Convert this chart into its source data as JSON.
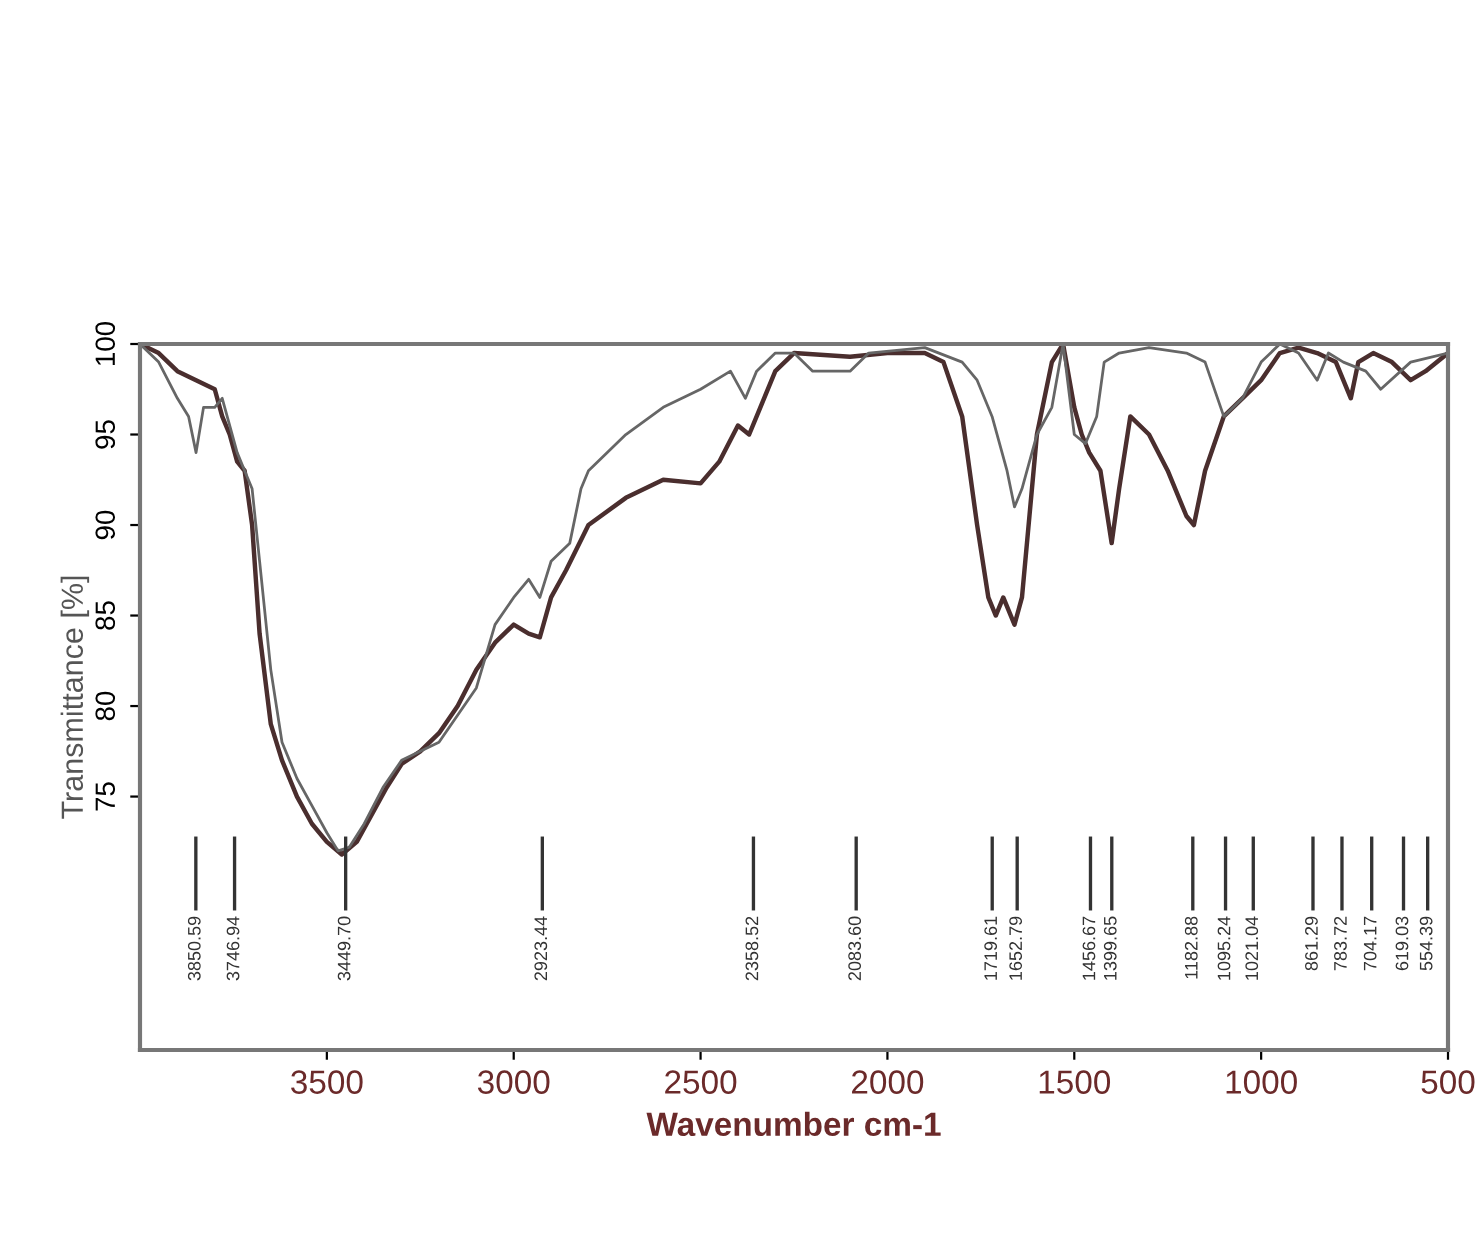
{
  "chart_data": {
    "type": "line",
    "xlabel": "Wavenumber cm-1",
    "ylabel": "Transmittance [%]",
    "xlim": [
      4000,
      500
    ],
    "xticks": [
      3500,
      3000,
      2500,
      2000,
      1500,
      1000,
      500
    ],
    "ylim": [
      61,
      100
    ],
    "yticks": [
      75,
      80,
      85,
      90,
      95,
      100
    ],
    "grid": false,
    "series": [
      {
        "color": "#4a2e2e",
        "x": [
          4000,
          3950,
          3900,
          3850,
          3800,
          3780,
          3760,
          3740,
          3720,
          3700,
          3680,
          3650,
          3620,
          3580,
          3540,
          3500,
          3460,
          3420,
          3380,
          3340,
          3300,
          3250,
          3200,
          3150,
          3100,
          3050,
          3000,
          2960,
          2930,
          2900,
          2860,
          2800,
          2700,
          2600,
          2500,
          2450,
          2400,
          2370,
          2340,
          2300,
          2250,
          2100,
          2000,
          1900,
          1850,
          1800,
          1760,
          1730,
          1710,
          1690,
          1660,
          1640,
          1600,
          1560,
          1530,
          1500,
          1480,
          1460,
          1430,
          1400,
          1380,
          1350,
          1300,
          1250,
          1200,
          1180,
          1150,
          1100,
          1050,
          1000,
          950,
          900,
          850,
          800,
          760,
          740,
          700,
          650,
          600,
          560,
          500
        ],
        "values": [
          100,
          99.5,
          98.5,
          98,
          97.5,
          96,
          95,
          93.5,
          93,
          90,
          84,
          79,
          77,
          75,
          73.5,
          72.5,
          71.8,
          72.5,
          74,
          75.5,
          76.8,
          77.5,
          78.5,
          80,
          82,
          83.5,
          84.5,
          84,
          83.8,
          86,
          87.5,
          90,
          91.5,
          92.5,
          92.3,
          93.5,
          95.5,
          95,
          96.5,
          98.5,
          99.5,
          99.3,
          99.5,
          99.5,
          99,
          96,
          90,
          86,
          85,
          86,
          84.5,
          86,
          95,
          99,
          100,
          96.5,
          95,
          94,
          93,
          89,
          92,
          96,
          95,
          93,
          90.5,
          90,
          93,
          96,
          97,
          98,
          99.5,
          99.8,
          99.5,
          99,
          97,
          99,
          99.5,
          99,
          98,
          98.5,
          99.5
        ]
      },
      {
        "color": "#666666",
        "x": [
          4000,
          3950,
          3900,
          3870,
          3850,
          3830,
          3800,
          3780,
          3740,
          3720,
          3700,
          3680,
          3650,
          3620,
          3580,
          3540,
          3500,
          3470,
          3440,
          3400,
          3350,
          3300,
          3200,
          3100,
          3050,
          3000,
          2960,
          2930,
          2900,
          2850,
          2820,
          2800,
          2700,
          2600,
          2500,
          2420,
          2380,
          2350,
          2300,
          2250,
          2200,
          2100,
          2050,
          1900,
          1800,
          1760,
          1720,
          1680,
          1660,
          1640,
          1600,
          1560,
          1530,
          1500,
          1470,
          1440,
          1420,
          1380,
          1300,
          1200,
          1150,
          1100,
          1050,
          1000,
          950,
          900,
          850,
          820,
          780,
          720,
          680,
          600,
          500
        ],
        "values": [
          100,
          99,
          97,
          96,
          94,
          96.5,
          96.5,
          97,
          94,
          93,
          92,
          88,
          82,
          78,
          76,
          74.5,
          73,
          72,
          72.2,
          73.5,
          75.5,
          77,
          78,
          81,
          84.5,
          86,
          87,
          86,
          88,
          89,
          92,
          93,
          95,
          96.5,
          97.5,
          98.5,
          97,
          98.5,
          99.5,
          99.5,
          98.5,
          98.5,
          99.5,
          99.8,
          99,
          98,
          96,
          93,
          91,
          92,
          95,
          96.5,
          100,
          95,
          94.5,
          96,
          99,
          99.5,
          99.8,
          99.5,
          99,
          96,
          97,
          99,
          100,
          99.5,
          98,
          99.5,
          99,
          98.5,
          97.5,
          99,
          99.5
        ]
      }
    ],
    "ref_lines": [
      {
        "axis": "x",
        "value": 3850.59,
        "label": "3850.59"
      },
      {
        "axis": "x",
        "value": 3746.94,
        "label": "3746.94"
      },
      {
        "axis": "x",
        "value": 3449.7,
        "label": "3449.70"
      },
      {
        "axis": "x",
        "value": 2923.44,
        "label": "2923.44"
      },
      {
        "axis": "x",
        "value": 2358.52,
        "label": "2358.52"
      },
      {
        "axis": "x",
        "value": 2083.6,
        "label": "2083.60"
      },
      {
        "axis": "x",
        "value": 1719.61,
        "label": "1719.61"
      },
      {
        "axis": "x",
        "value": 1652.79,
        "label": "1652.79"
      },
      {
        "axis": "x",
        "value": 1456.67,
        "label": "1456.67"
      },
      {
        "axis": "x",
        "value": 1399.65,
        "label": "1399.65"
      },
      {
        "axis": "x",
        "value": 1182.88,
        "label": "1182.88"
      },
      {
        "axis": "x",
        "value": 1095.24,
        "label": "1095.24"
      },
      {
        "axis": "x",
        "value": 1021.04,
        "label": "1021.04"
      },
      {
        "axis": "x",
        "value": 861.29,
        "label": "861.29"
      },
      {
        "axis": "x",
        "value": 783.72,
        "label": "783.72"
      },
      {
        "axis": "x",
        "value": 704.17,
        "label": "704.17"
      },
      {
        "axis": "x",
        "value": 619.03,
        "label": "619.03"
      },
      {
        "axis": "x",
        "value": 554.39,
        "label": "554.39"
      }
    ]
  }
}
